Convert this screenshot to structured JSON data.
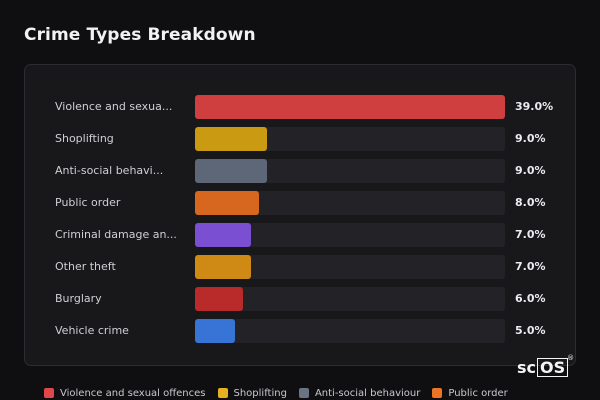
{
  "header": {
    "title": "Crime Types Breakdown"
  },
  "chart_data": {
    "type": "bar",
    "orientation": "horizontal",
    "title": "Crime Types Breakdown",
    "categories": [
      "Violence and sexua...",
      "Shoplifting",
      "Anti-social behavi...",
      "Public order",
      "Criminal damage an...",
      "Other theft",
      "Burglary",
      "Vehicle crime"
    ],
    "values": [
      39.0,
      9.0,
      9.0,
      8.0,
      7.0,
      7.0,
      6.0,
      5.0
    ],
    "value_labels": [
      "39.0%",
      "9.0%",
      "9.0%",
      "8.0%",
      "7.0%",
      "7.0%",
      "6.0%",
      "5.0%"
    ],
    "max": 39.0,
    "colors": [
      "#cf3f3f",
      "#c99a12",
      "#5d6778",
      "#d7661e",
      "#7a4fd2",
      "#cf8a16",
      "#b92a2a",
      "#3873d6"
    ],
    "grid": false,
    "legend_position": "bottom"
  },
  "legend": {
    "items": [
      {
        "label": "Violence and sexual offences",
        "color": "#e0474b"
      },
      {
        "label": "Shoplifting",
        "color": "#e6b020"
      },
      {
        "label": "Anti-social behaviour",
        "color": "#6a7485"
      },
      {
        "label": "Public order",
        "color": "#ec7424"
      }
    ]
  },
  "brand": {
    "prefix": "sc",
    "boxed": "OS",
    "mark": "®"
  }
}
